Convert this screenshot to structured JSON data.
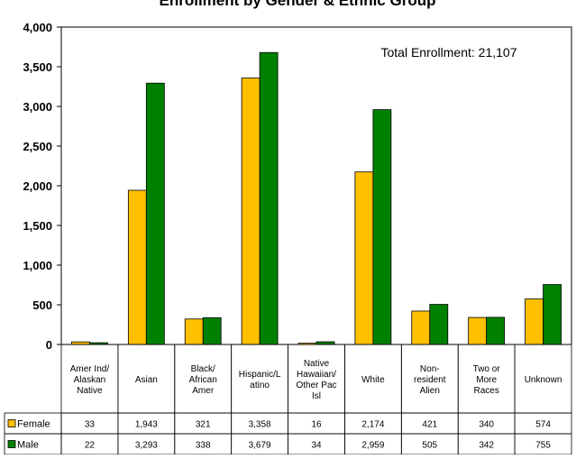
{
  "chart_data": {
    "type": "bar",
    "title": "Enrollment by Gender & Ethnic Group",
    "annotation": "Total Enrollment: 21,107",
    "categories": [
      [
        "Amer Ind/",
        "Alaskan",
        "Native"
      ],
      [
        "Asian"
      ],
      [
        "Black/",
        "African",
        "Amer"
      ],
      [
        "Hispanic/L",
        "atino"
      ],
      [
        "Native",
        "Hawaiian/",
        "Other Pac",
        "Isl"
      ],
      [
        "White"
      ],
      [
        "Non-",
        "resident",
        "Alien"
      ],
      [
        "Two or",
        "More",
        "Races"
      ],
      [
        "Unknown"
      ]
    ],
    "series": [
      {
        "name": "Female",
        "color": "#FFC000",
        "values": [
          33,
          1943,
          321,
          3358,
          16,
          2174,
          421,
          340,
          574
        ],
        "display": [
          "33",
          "1,943",
          "321",
          "3,358",
          "16",
          "2,174",
          "421",
          "340",
          "574"
        ]
      },
      {
        "name": "Male",
        "color": "#008000",
        "values": [
          22,
          3293,
          338,
          3679,
          34,
          2959,
          505,
          342,
          755
        ],
        "display": [
          "22",
          "3,293",
          "338",
          "3,679",
          "34",
          "2,959",
          "505",
          "342",
          "755"
        ]
      }
    ],
    "ylim": [
      0,
      4000
    ],
    "yticks": [
      0,
      500,
      1000,
      1500,
      2000,
      2500,
      3000,
      3500,
      4000
    ],
    "ytick_labels": [
      "0",
      "500",
      "1,000",
      "1,500",
      "2,000",
      "2,500",
      "3,000",
      "3,500",
      "4,000"
    ],
    "grid": false,
    "legend": "data-table"
  }
}
